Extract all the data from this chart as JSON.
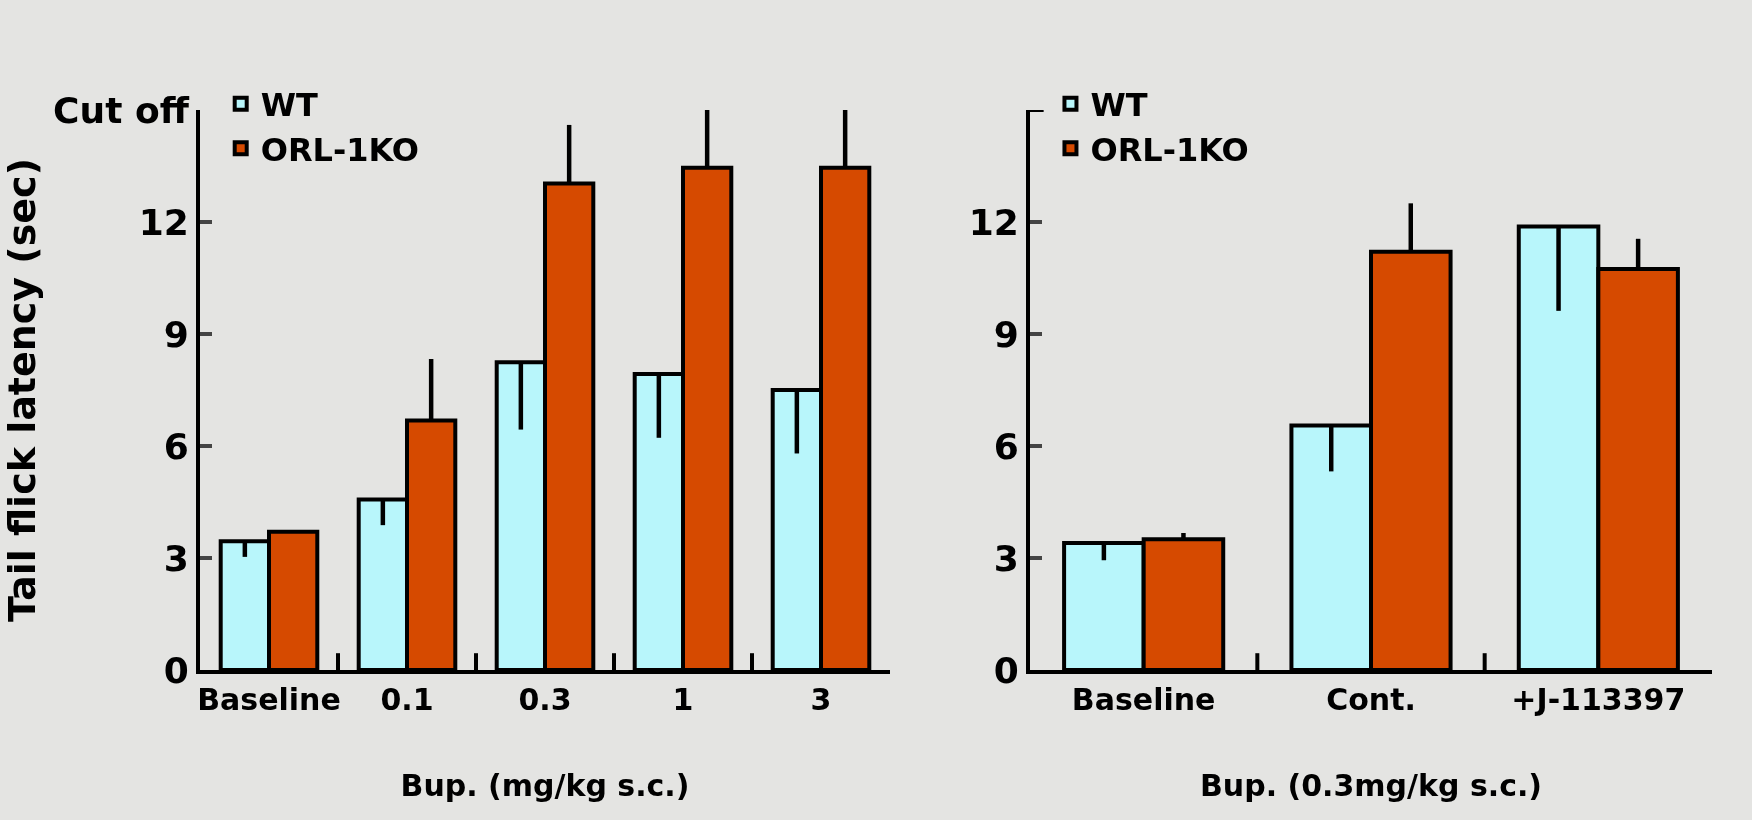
{
  "chart_data": [
    {
      "type": "bar",
      "ylabel": "Tail flick latency (sec)",
      "xlabel": "Bup. (mg/kg s.c.)",
      "categories": [
        "Baseline",
        "0.1",
        "0.3",
        "1",
        "3"
      ],
      "series": [
        {
          "name": "WT",
          "color": "#b8f6fb",
          "values": [
            3.45,
            4.57,
            8.24,
            7.93,
            7.5
          ],
          "errors": [
            [
              3.03,
              3.45
            ],
            [
              3.88,
              4.57
            ],
            [
              6.44,
              8.24
            ],
            [
              6.22,
              7.93
            ],
            [
              5.8,
              7.5
            ]
          ]
        },
        {
          "name": "ORL-1KO",
          "color": "#d64a00",
          "values": [
            3.7,
            6.68,
            13.03,
            13.45,
            13.45
          ],
          "errors": [
            null,
            [
              6.68,
              8.33
            ],
            [
              13.03,
              14.6
            ],
            [
              13.45,
              15
            ],
            [
              13.45,
              15
            ]
          ]
        }
      ],
      "ylim": [
        0,
        15
      ],
      "yticks": [
        0,
        3,
        6,
        9,
        12,
        {
          "value": 15,
          "label": "Cut off"
        }
      ],
      "grid": false,
      "legend": "top left"
    },
    {
      "type": "bar",
      "xlabel": "Bup. (0.3mg/kg s.c.)",
      "categories": [
        "Baseline",
        "Cont.",
        "+J-113397"
      ],
      "series": [
        {
          "name": "WT",
          "color": "#b8f6fb",
          "values": [
            3.4,
            6.55,
            11.88
          ],
          "errors": [
            [
              2.94,
              3.4
            ],
            [
              5.32,
              6.55
            ],
            [
              9.62,
              11.88
            ]
          ]
        },
        {
          "name": "ORL-1KO",
          "color": "#d64a00",
          "values": [
            3.5,
            11.2,
            10.74
          ],
          "errors": [
            [
              3.5,
              3.67
            ],
            [
              11.2,
              12.5
            ],
            [
              10.74,
              11.55
            ]
          ]
        }
      ],
      "ylim": [
        0,
        15
      ],
      "yticks": [
        0,
        3,
        6,
        9,
        12,
        {
          "value": 15,
          "label": null
        }
      ],
      "grid": false,
      "legend": "top left"
    }
  ]
}
